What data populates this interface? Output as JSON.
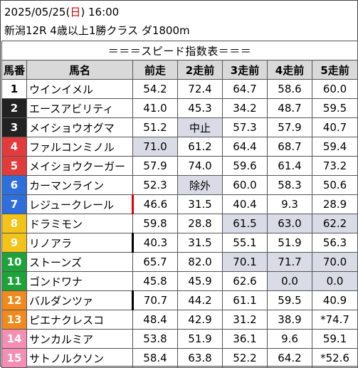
{
  "header": {
    "date": "2025/05/25",
    "day_open": "(",
    "day": "日",
    "day_close": ")",
    "time": "16:00",
    "race": "新潟12R 4歳以上1勝クラス ダ1800m"
  },
  "table_title": "＝＝＝スピード指数表＝＝＝",
  "columns": [
    "馬番",
    "馬名",
    "前走",
    "2走前",
    "3走前",
    "4走前",
    "5走前"
  ],
  "colors": {
    "frame1": "#ffffff",
    "frame2": "#222222",
    "frame3": "#e23b3b",
    "frame4": "#2f6fdc",
    "frame5": "#f2c318",
    "frame6": "#1ea33b",
    "frame7": "#f08a1c",
    "frame8": "#f48fb3",
    "highlight": "#d9dce6",
    "mark_red": "#e00000",
    "mark_black": "#000000"
  },
  "rows": [
    {
      "num": "1",
      "name": "ウインイメル",
      "bg": "#ffffff",
      "fg": "#000000",
      "mark": "",
      "vals": [
        "54.2",
        "72.4",
        "64.7",
        "58.6",
        "60.0"
      ],
      "hl": [
        false,
        false,
        false,
        false,
        false
      ]
    },
    {
      "num": "2",
      "name": "エースアビリティ",
      "bg": "#222222",
      "fg": "#ffffff",
      "mark": "",
      "vals": [
        "41.0",
        "45.3",
        "34.2",
        "48.7",
        "59.5"
      ],
      "hl": [
        false,
        false,
        false,
        false,
        false
      ]
    },
    {
      "num": "3",
      "name": "メイショウオグマ",
      "bg": "#222222",
      "fg": "#ffffff",
      "mark": "",
      "vals": [
        "51.2",
        "中止",
        "57.3",
        "57.9",
        "40.7"
      ],
      "hl": [
        false,
        true,
        false,
        false,
        false
      ]
    },
    {
      "num": "4",
      "name": "ファルコンミノル",
      "bg": "#e23b3b",
      "fg": "#ffffff",
      "mark": "",
      "vals": [
        "71.0",
        "61.2",
        "64.4",
        "68.7",
        "59.4"
      ],
      "hl": [
        true,
        false,
        false,
        false,
        false
      ]
    },
    {
      "num": "5",
      "name": "メイショウクーガー",
      "bg": "#e23b3b",
      "fg": "#ffffff",
      "mark": "",
      "vals": [
        "57.9",
        "74.0",
        "59.6",
        "61.4",
        "73.2"
      ],
      "hl": [
        false,
        false,
        false,
        false,
        false
      ]
    },
    {
      "num": "6",
      "name": "カーマンライン",
      "bg": "#2f6fdc",
      "fg": "#ffffff",
      "mark": "",
      "vals": [
        "52.3",
        "除外",
        "60.0",
        "58.3",
        "50.6"
      ],
      "hl": [
        false,
        true,
        false,
        false,
        false
      ]
    },
    {
      "num": "7",
      "name": "レジュークレール",
      "bg": "#2f6fdc",
      "fg": "#ffffff",
      "mark": "red",
      "vals": [
        "46.6",
        "31.5",
        "40.4",
        "9.3",
        "28.9"
      ],
      "hl": [
        false,
        false,
        false,
        false,
        false
      ]
    },
    {
      "num": "8",
      "name": "ドラミモン",
      "bg": "#f2c318",
      "fg": "#ffffff",
      "mark": "",
      "vals": [
        "59.8",
        "28.8",
        "61.5",
        "63.0",
        "62.2"
      ],
      "hl": [
        false,
        false,
        true,
        true,
        true
      ]
    },
    {
      "num": "9",
      "name": "リノアラ",
      "bg": "#f2c318",
      "fg": "#ffffff",
      "mark": "black",
      "vals": [
        "40.3",
        "31.5",
        "55.1",
        "51.9",
        "56.3"
      ],
      "hl": [
        false,
        false,
        false,
        false,
        false
      ]
    },
    {
      "num": "10",
      "name": "ストーンズ",
      "bg": "#1ea33b",
      "fg": "#ffffff",
      "mark": "",
      "vals": [
        "65.7",
        "82.0",
        "70.1",
        "71.7",
        "70.0"
      ],
      "hl": [
        false,
        false,
        true,
        true,
        true
      ]
    },
    {
      "num": "11",
      "name": "ゴンドワナ",
      "bg": "#1ea33b",
      "fg": "#ffffff",
      "mark": "",
      "vals": [
        "45.8",
        "45.9",
        "62.6",
        "0.0",
        "0.0"
      ],
      "hl": [
        false,
        false,
        false,
        true,
        true
      ]
    },
    {
      "num": "12",
      "name": "バルダンツァ",
      "bg": "#f08a1c",
      "fg": "#ffffff",
      "mark": "black",
      "vals": [
        "70.7",
        "44.2",
        "61.1",
        "59.5",
        "40.9"
      ],
      "hl": [
        false,
        false,
        false,
        false,
        false
      ]
    },
    {
      "num": "13",
      "name": "ピエナクレスコ",
      "bg": "#f08a1c",
      "fg": "#ffffff",
      "mark": "",
      "vals": [
        "48.4",
        "42.9",
        "31.2",
        "38.9",
        "*74.7"
      ],
      "hl": [
        false,
        false,
        false,
        false,
        false
      ]
    },
    {
      "num": "14",
      "name": "サンカルミア",
      "bg": "#f48fb3",
      "fg": "#ffffff",
      "mark": "",
      "vals": [
        "53.8",
        "51.9",
        "36.1",
        "9.6",
        "59.1"
      ],
      "hl": [
        false,
        false,
        false,
        false,
        false
      ]
    },
    {
      "num": "15",
      "name": "サトノルクソン",
      "bg": "#f48fb3",
      "fg": "#ffffff",
      "mark": "",
      "vals": [
        "58.4",
        "63.8",
        "52.2",
        "64.2",
        "*52.6"
      ],
      "hl": [
        false,
        false,
        false,
        false,
        false
      ]
    }
  ]
}
